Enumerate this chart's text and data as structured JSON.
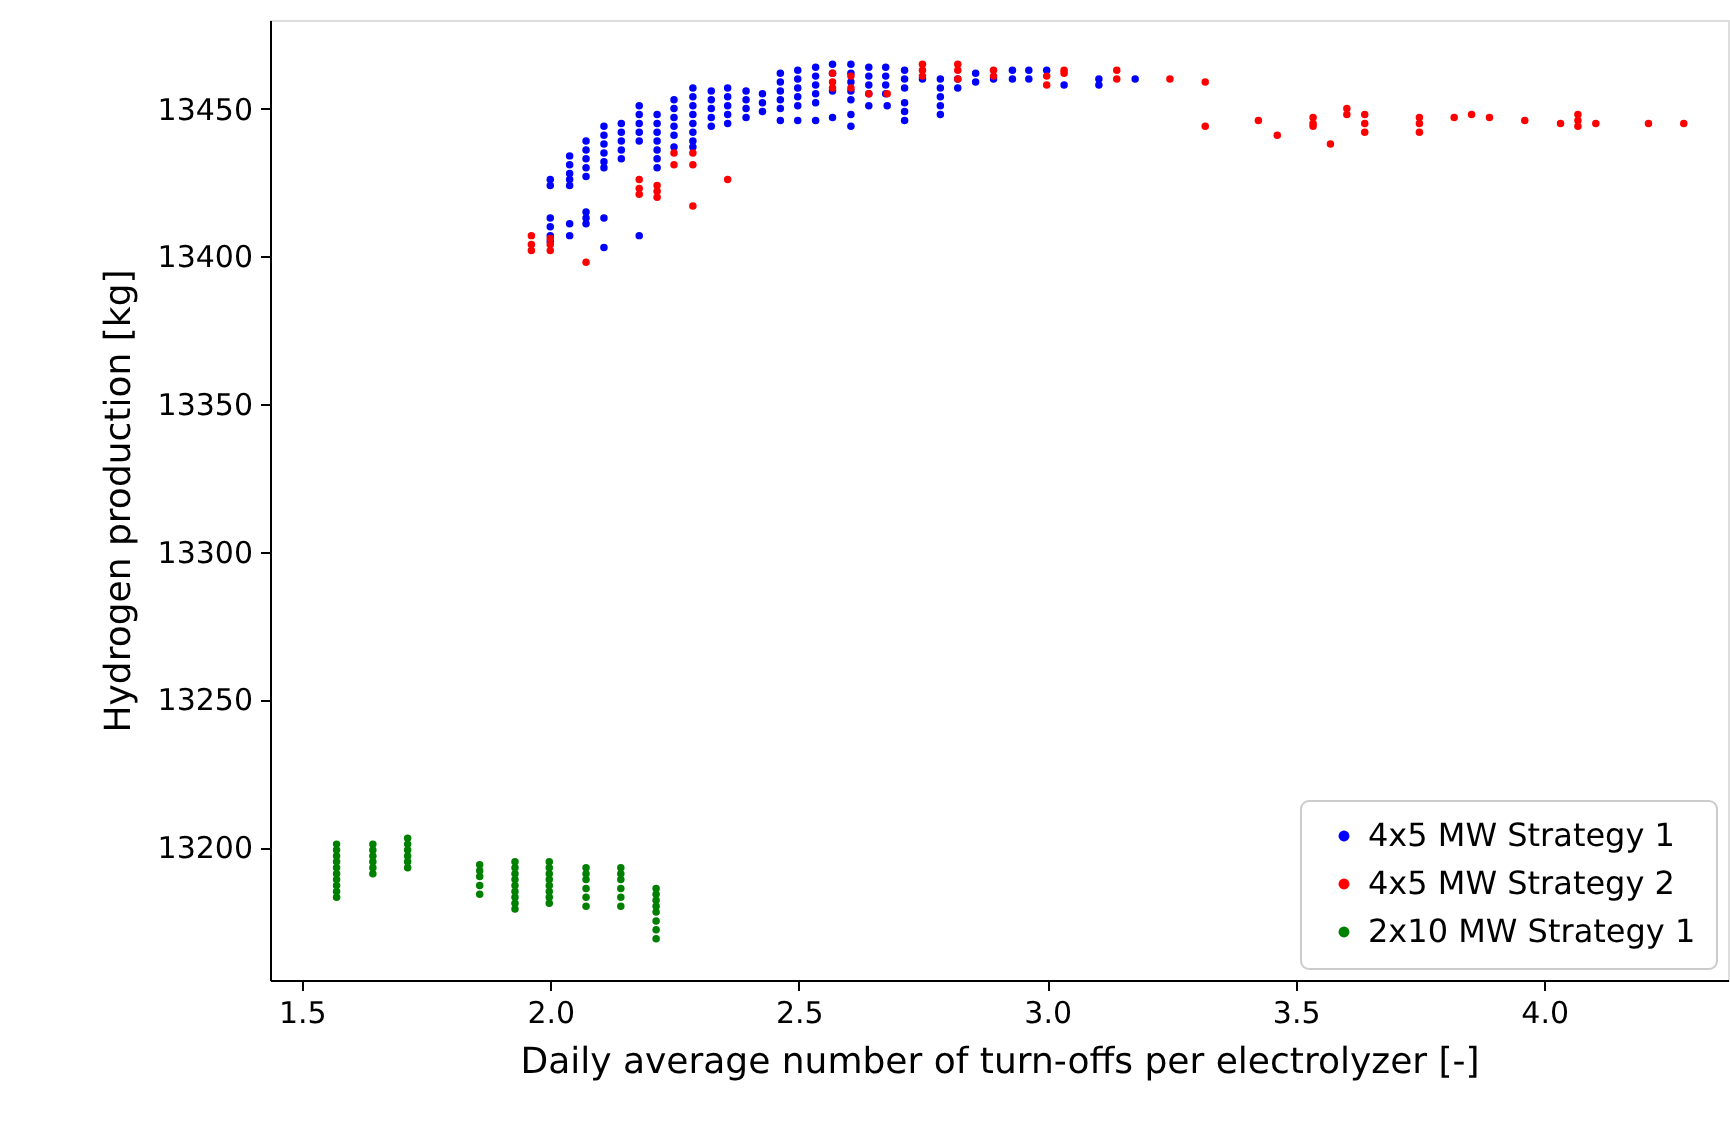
{
  "chart_data": {
    "type": "scatter",
    "xlabel": "Daily average number of turn-offs per electrolyzer [-]",
    "ylabel": "Hydrogen production [kg]",
    "xlim": [
      1.436,
      4.37
    ],
    "ylim": [
      13155,
      13480
    ],
    "xticks": [
      1.5,
      {
        "value": 2,
        "label": "2.0"
      },
      2.5,
      {
        "value": 3,
        "label": "3.0"
      },
      3.5,
      {
        "value": 4,
        "label": "4.0"
      }
    ],
    "yticks": [
      13200,
      13250,
      13300,
      13350,
      13400,
      13450
    ],
    "grid": false,
    "legend": "bottom right",
    "marker": "circle",
    "series": [
      {
        "name": "4x5 MW Strategy 1",
        "color": "#0000ff",
        "x": [
          2.0,
          2.0,
          2.0,
          2.0,
          2.0,
          2.0,
          2.039,
          2.039,
          2.039,
          2.039,
          2.039,
          2.039,
          2.039,
          2.072,
          2.072,
          2.072,
          2.072,
          2.072,
          2.072,
          2.072,
          2.072,
          2.108,
          2.108,
          2.108,
          2.108,
          2.108,
          2.108,
          2.108,
          2.108,
          2.143,
          2.143,
          2.143,
          2.143,
          2.143,
          2.179,
          2.179,
          2.179,
          2.179,
          2.179,
          2.179,
          2.215,
          2.215,
          2.215,
          2.215,
          2.215,
          2.215,
          2.215,
          2.249,
          2.249,
          2.249,
          2.249,
          2.249,
          2.249,
          2.287,
          2.287,
          2.287,
          2.287,
          2.287,
          2.287,
          2.287,
          2.287,
          2.324,
          2.324,
          2.324,
          2.324,
          2.324,
          2.357,
          2.357,
          2.357,
          2.357,
          2.357,
          2.394,
          2.394,
          2.394,
          2.394,
          2.427,
          2.427,
          2.427,
          2.463,
          2.463,
          2.463,
          2.463,
          2.463,
          2.463,
          2.498,
          2.498,
          2.498,
          2.498,
          2.498,
          2.498,
          2.534,
          2.534,
          2.534,
          2.534,
          2.534,
          2.534,
          2.568,
          2.568,
          2.568,
          2.568,
          2.605,
          2.605,
          2.605,
          2.605,
          2.605,
          2.605,
          2.605,
          2.641,
          2.641,
          2.641,
          2.641,
          2.641,
          2.675,
          2.675,
          2.675,
          2.675,
          2.678,
          2.713,
          2.713,
          2.713,
          2.713,
          2.713,
          2.713,
          2.749,
          2.785,
          2.785,
          2.785,
          2.785,
          2.785,
          2.82,
          2.82,
          2.856,
          2.856,
          2.892,
          2.93,
          2.93,
          2.963,
          2.963,
          2.999,
          3.034,
          3.104,
          3.104,
          3.177
        ],
        "values": [
          13426,
          13424,
          13413,
          13410,
          13407,
          13405,
          13434,
          13431,
          13428,
          13426,
          13424,
          13411,
          13407,
          13439,
          13436,
          13433,
          13430,
          13427,
          13415,
          13413,
          13411,
          13444,
          13441,
          13438,
          13435,
          13432,
          13430,
          13413,
          13403,
          13445,
          13442,
          13439,
          13436,
          13433,
          13451,
          13448,
          13445,
          13442,
          13439,
          13407,
          13448,
          13445,
          13442,
          13439,
          13436,
          13433,
          13430,
          13453,
          13450,
          13447,
          13444,
          13441,
          13437,
          13457,
          13454,
          13451,
          13448,
          13445,
          13442,
          13439,
          13437,
          13456,
          13453,
          13450,
          13447,
          13444,
          13457,
          13454,
          13451,
          13448,
          13445,
          13456,
          13453,
          13450,
          13447,
          13455,
          13452,
          13449,
          13462,
          13459,
          13456,
          13453,
          13450,
          13446,
          13463,
          13460,
          13457,
          13454,
          13451,
          13446,
          13464,
          13461,
          13458,
          13455,
          13452,
          13446,
          13465,
          13462,
          13456,
          13447,
          13465,
          13462,
          13459,
          13456,
          13453,
          13448,
          13444,
          13464,
          13461,
          13458,
          13455,
          13451,
          13464,
          13461,
          13458,
          13455,
          13451,
          13463,
          13460,
          13457,
          13452,
          13449,
          13446,
          13460,
          13460,
          13457,
          13454,
          13451,
          13448,
          13460,
          13457,
          13462,
          13459,
          13460,
          13463,
          13460,
          13463,
          13460,
          13463,
          13458,
          13460,
          13458,
          13460
        ]
      },
      {
        "name": "4x5 MW Strategy 2",
        "color": "#ff0000",
        "x": [
          1.962,
          1.962,
          1.962,
          2.0,
          2.0,
          2.0,
          2.072,
          2.179,
          2.179,
          2.179,
          2.215,
          2.215,
          2.215,
          2.249,
          2.249,
          2.287,
          2.287,
          2.287,
          2.357,
          2.568,
          2.568,
          2.568,
          2.605,
          2.605,
          2.641,
          2.678,
          2.749,
          2.749,
          2.749,
          2.82,
          2.82,
          2.82,
          2.892,
          2.892,
          2.999,
          2.999,
          3.034,
          3.034,
          3.14,
          3.14,
          3.247,
          3.318,
          3.318,
          3.425,
          3.463,
          3.535,
          3.535,
          3.535,
          3.57,
          3.603,
          3.603,
          3.639,
          3.639,
          3.639,
          3.749,
          3.749,
          3.749,
          3.819,
          3.854,
          3.89,
          3.961,
          4.033,
          4.068,
          4.068,
          4.068,
          4.104,
          4.21,
          4.281
        ],
        "values": [
          13407,
          13404,
          13402,
          13406,
          13404,
          13402,
          13398,
          13426,
          13423,
          13421,
          13424,
          13422,
          13420,
          13435,
          13431,
          13435,
          13431,
          13417,
          13426,
          13462,
          13459,
          13457,
          13461,
          13457,
          13455,
          13455,
          13465,
          13463,
          13461,
          13465,
          13463,
          13460,
          13463,
          13461,
          13461,
          13458,
          13463,
          13462,
          13463,
          13460,
          13460,
          13459,
          13444,
          13446,
          13441,
          13447,
          13445,
          13444,
          13438,
          13450,
          13448,
          13448,
          13445,
          13442,
          13447,
          13445,
          13442,
          13447,
          13448,
          13447,
          13446,
          13445,
          13448,
          13446,
          13444,
          13445,
          13445,
          13445
        ]
      },
      {
        "name": "2x10 MW Strategy 1",
        "color": "#008000",
        "x": [
          1.57,
          1.57,
          1.57,
          1.57,
          1.57,
          1.57,
          1.57,
          1.57,
          1.57,
          1.57,
          1.643,
          1.643,
          1.643,
          1.643,
          1.643,
          1.643,
          1.713,
          1.713,
          1.713,
          1.713,
          1.713,
          1.713,
          1.858,
          1.858,
          1.858,
          1.858,
          1.858,
          1.929,
          1.929,
          1.929,
          1.929,
          1.929,
          1.929,
          1.929,
          1.929,
          1.929,
          1.998,
          1.998,
          1.998,
          1.998,
          1.998,
          1.998,
          1.998,
          1.998,
          2.072,
          2.072,
          2.072,
          2.072,
          2.072,
          2.072,
          2.142,
          2.142,
          2.142,
          2.142,
          2.142,
          2.142,
          2.213,
          2.213,
          2.213,
          2.213,
          2.213,
          2.213,
          2.213,
          2.213
        ],
        "values": [
          13201,
          13199,
          13197,
          13195,
          13193,
          13191,
          13189,
          13187,
          13185,
          13183,
          13201,
          13199,
          13197,
          13195,
          13193,
          13191,
          13203,
          13201,
          13199,
          13197,
          13195,
          13193,
          13194,
          13192,
          13190,
          13187,
          13184,
          13195,
          13193,
          13191,
          13189,
          13187,
          13185,
          13183,
          13181,
          13179,
          13195,
          13193,
          13191,
          13189,
          13187,
          13185,
          13183,
          13181,
          13193,
          13191,
          13189,
          13186,
          13183,
          13180,
          13193,
          13191,
          13189,
          13186,
          13183,
          13180,
          13186,
          13184,
          13182,
          13180,
          13178,
          13175,
          13172,
          13169
        ]
      }
    ]
  }
}
